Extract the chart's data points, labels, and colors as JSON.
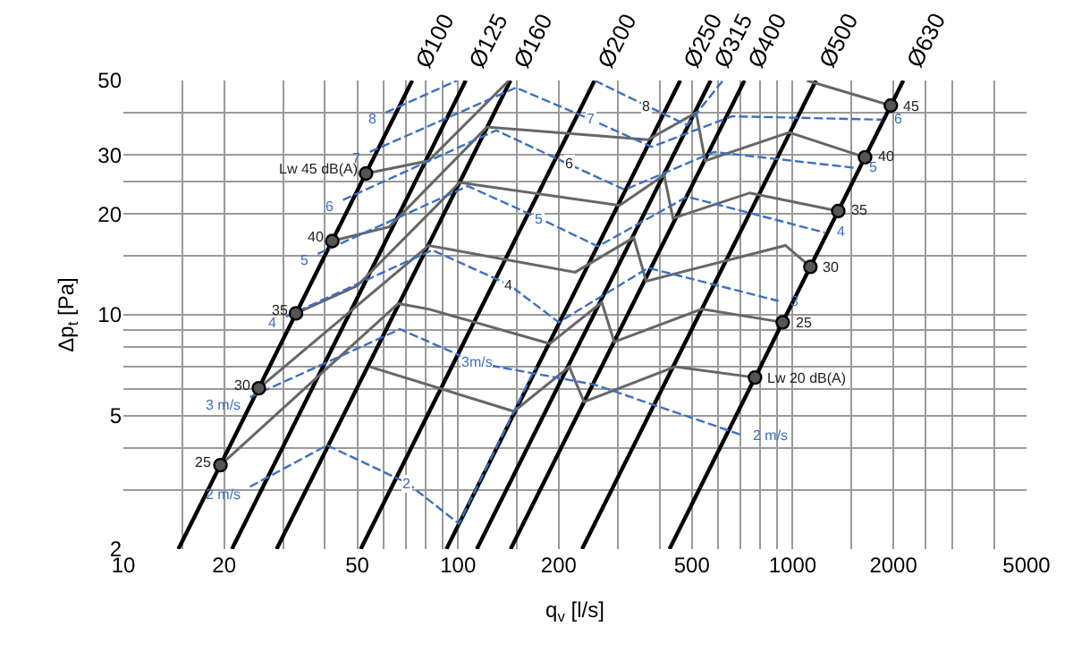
{
  "chart_data": {
    "type": "line",
    "xlabel": "q$_{v}$ [l/s]",
    "ylabel": "Δp$_{t}$ [Pa]",
    "log": "xy",
    "grid": true,
    "xlim": [
      10,
      5000
    ],
    "ylim": [
      2,
      50
    ],
    "xticks": [
      10,
      {
        "value": 15,
        "label": null
      },
      20,
      {
        "value": 30,
        "label": null
      },
      {
        "value": 40,
        "label": null
      },
      50,
      {
        "value": 60,
        "label": null
      },
      {
        "value": 70,
        "label": null
      },
      {
        "value": 80,
        "label": null
      },
      {
        "value": 90,
        "label": null
      },
      100,
      {
        "value": 150,
        "label": null
      },
      200,
      {
        "value": 300,
        "label": null
      },
      {
        "value": 400,
        "label": null
      },
      500,
      {
        "value": 600,
        "label": null
      },
      {
        "value": 700,
        "label": null
      },
      {
        "value": 800,
        "label": null
      },
      {
        "value": 900,
        "label": null
      },
      1000,
      {
        "value": 1500,
        "label": null
      },
      2000,
      {
        "value": 2500,
        "label": null
      },
      {
        "value": 3000,
        "label": null
      },
      {
        "value": 4000,
        "label": null
      },
      5000
    ],
    "yticks": [
      2,
      {
        "value": 3,
        "label": null
      },
      {
        "value": 4,
        "label": null
      },
      5,
      {
        "value": 6,
        "label": null
      },
      {
        "value": 7,
        "label": null
      },
      {
        "value": 8,
        "label": null
      },
      {
        "value": 9,
        "label": null
      },
      10,
      {
        "value": 15,
        "label": null
      },
      20,
      {
        "value": 25,
        "label": null
      },
      30,
      {
        "value": 40,
        "label": null
      },
      50
    ],
    "series": [
      {
        "color": "#000000",
        "x": [
          14.6,
          73
        ],
        "values": [
          2,
          50
        ]
      },
      {
        "color": "#000000",
        "x": [
          21.1,
          105.5
        ],
        "values": [
          2,
          50
        ]
      },
      {
        "color": "#000000",
        "x": [
          28.7,
          143.5
        ],
        "values": [
          2,
          50
        ]
      },
      {
        "color": "#000000",
        "x": [
          51.2,
          256
        ],
        "values": [
          2,
          50
        ]
      },
      {
        "color": "#000000",
        "x": [
          92.3,
          461.5
        ],
        "values": [
          2,
          50
        ]
      },
      {
        "color": "#000000",
        "x": [
          113.8,
          569
        ],
        "values": [
          2,
          50
        ]
      },
      {
        "color": "#000000",
        "x": [
          143.6,
          718
        ],
        "values": [
          2,
          50
        ]
      },
      {
        "color": "#000000",
        "x": [
          234.8,
          1174
        ],
        "values": [
          2,
          50
        ]
      },
      {
        "color": "#000000",
        "x": [
          428.5,
          2142
        ],
        "values": [
          2,
          50
        ]
      },
      {
        "color": "#666666",
        "x": [
          53.1,
          81.7,
          142,
          null,
          1103,
          1966
        ],
        "values": [
          26.4,
          28.8,
          50,
          null,
          50,
          42.1
        ]
      },
      {
        "color": "#666666",
        "x": [
          42.1,
          62.3,
          122,
          370,
          515,
          548,
          976,
          1646
        ],
        "values": [
          16.6,
          18.3,
          36.3,
          33.3,
          40.1,
          28.8,
          35.0,
          29.5
        ]
      },
      {
        "color": "#666666",
        "x": [
          32.8,
          50.0,
          101,
          304,
          413,
          439,
          745,
          1369
        ],
        "values": [
          10.1,
          12.2,
          24.8,
          21.2,
          26.1,
          19.4,
          23.1,
          20.4
        ]
      },
      {
        "color": "#666666",
        "x": [
          25.4,
          81.7,
          224,
          335,
          365,
          952,
          1130
        ],
        "values": [
          6.04,
          16.1,
          13.4,
          17.0,
          12.6,
          16.1,
          13.9
        ]
      },
      {
        "color": "#666666",
        "x": [
          19.5,
          66.3,
          81.7,
          188,
          269,
          293,
          535,
          934
        ],
        "values": [
          3.56,
          10.8,
          10.4,
          8.2,
          10.9,
          8.3,
          10.4,
          9.5
        ]
      },
      {
        "color": "#666666",
        "x": [
          54.5,
          147,
          215,
          238,
          445,
          772
        ],
        "values": [
          7.0,
          5.15,
          7.0,
          5.5,
          7.0,
          6.5
        ]
      },
      {
        "color": "#3b6fc6",
        "line_style": "dashed",
        "x": [
          23.9,
          40.6,
          70.5,
          100.6,
          171
        ],
        "values": [
          3.07,
          4.08,
          3.15,
          2.38,
          7.0
        ]
      },
      {
        "color": "#3b6fc6",
        "line_style": "dashed",
        "x": [
          23.9,
          67.1,
          114,
          256,
          700
        ],
        "values": [
          5.68,
          9.06,
          7.18,
          6.19,
          4.39
        ]
      },
      {
        "color": "#3b6fc6",
        "line_style": "dashed",
        "x": [
          30.6,
          83.7,
          142,
          200,
          370,
          907
        ],
        "values": [
          9.88,
          15.6,
          12.3,
          9.5,
          13.8,
          11.0
        ]
      },
      {
        "color": "#3b6fc6",
        "line_style": "dashed",
        "x": [
          38.1,
          107,
          175,
          262,
          484,
          1247
        ],
        "values": [
          15.2,
          24.2,
          19.4,
          16.0,
          22.5,
          17.6
        ]
      },
      {
        "color": "#3b6fc6",
        "line_style": "dashed",
        "x": [
          45.3,
          130,
          215,
          315,
          582,
          1556
        ],
        "values": [
          22.0,
          35.5,
          28.1,
          23.6,
          30.6,
          27.4
        ]
      },
      {
        "color": "#3b6fc6",
        "line_style": "dashed",
        "x": [
          54.5,
          149,
          250,
          379,
          659,
          1848
        ],
        "values": [
          30.6,
          47.6,
          38.2,
          31.7,
          39.1,
          38.2
        ]
      },
      {
        "color": "#3b6fc6",
        "line_style": "dashed",
        "x": [
          60.8,
          99.4,
          null,
          256,
          365,
          484,
          619
        ],
        "values": [
          40.1,
          50,
          null,
          50,
          42.1,
          36.8,
          50
        ]
      },
      {
        "type": "scatter",
        "marker": "circle",
        "color": "#555555",
        "x": [
          19.5,
          25.4,
          32.8,
          42.1,
          53.1,
          772,
          934,
          1130,
          1369,
          1646,
          1966
        ],
        "values": [
          3.56,
          6.04,
          10.1,
          16.6,
          26.4,
          6.5,
          9.5,
          13.9,
          20.4,
          29.5,
          42.1
        ]
      }
    ],
    "annotations": [
      {
        "text": "Ø100",
        "x": 73,
        "y": 50
      },
      {
        "text": "Ø125",
        "x": 105.5,
        "y": 50
      },
      {
        "text": "Ø160",
        "x": 143.5,
        "y": 50
      },
      {
        "text": "Ø200",
        "x": 256,
        "y": 50
      },
      {
        "text": "Ø250",
        "x": 461.5,
        "y": 50
      },
      {
        "text": "Ø315",
        "x": 569,
        "y": 50
      },
      {
        "text": "Ø400",
        "x": 718,
        "y": 50
      },
      {
        "text": "Ø500",
        "x": 1174,
        "y": 50
      },
      {
        "text": "Ø630",
        "x": 2142,
        "y": 50
      },
      {
        "text": "8",
        "x": 60.8,
        "y": 40.1
      },
      {
        "text": "7",
        "x": 54.5,
        "y": 30.6
      },
      {
        "text": "6",
        "x": 45.3,
        "y": 22.0
      },
      {
        "text": "5",
        "x": 38.1,
        "y": 15.2
      },
      {
        "text": "4",
        "x": 30.6,
        "y": 9.88
      },
      {
        "text": "3 m/s",
        "x": 23.9,
        "y": 5.68
      },
      {
        "text": "2 m/s",
        "x": 23.9,
        "y": 3.07
      },
      {
        "text": "8",
        "x": 365,
        "y": 42.1
      },
      {
        "text": "7",
        "x": 250,
        "y": 38.2
      },
      {
        "text": "6",
        "x": 215,
        "y": 28.1
      },
      {
        "text": "5",
        "x": 175,
        "y": 19.4
      },
      {
        "text": "4",
        "x": 142,
        "y": 12.3
      },
      {
        "text": "3m/s",
        "x": 114,
        "y": 7.18
      },
      {
        "text": "2",
        "x": 70.5,
        "y": 3.15
      },
      {
        "text": "6",
        "x": 1848,
        "y": 38.2
      },
      {
        "text": "5",
        "x": 1556,
        "y": 27.4
      },
      {
        "text": "4",
        "x": 1247,
        "y": 17.6
      },
      {
        "text": "3",
        "x": 907,
        "y": 11.0
      },
      {
        "text": "2 m/s",
        "x": 700,
        "y": 4.39
      },
      {
        "text": "25",
        "x": 19.5,
        "y": 3.56
      },
      {
        "text": "30",
        "x": 25.4,
        "y": 6.04
      },
      {
        "text": "35",
        "x": 32.8,
        "y": 10.1
      },
      {
        "text": "40",
        "x": 42.1,
        "y": 16.6
      },
      {
        "text": "Lw 45 dB(A)",
        "x": 53.1,
        "y": 26.4
      },
      {
        "text": "Lw 20 dB(A)",
        "x": 772,
        "y": 6.5
      },
      {
        "text": "25",
        "x": 934,
        "y": 9.5
      },
      {
        "text": "30",
        "x": 1130,
        "y": 13.9
      },
      {
        "text": "35",
        "x": 1369,
        "y": 20.4
      },
      {
        "text": "40",
        "x": 1646,
        "y": 29.5
      },
      {
        "text": "45",
        "x": 1966,
        "y": 42.1
      }
    ]
  }
}
